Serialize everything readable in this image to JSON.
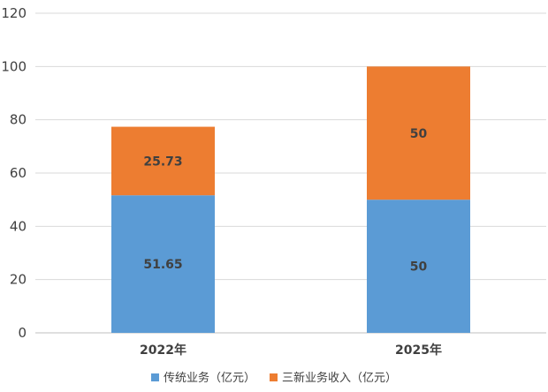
{
  "chart_data": {
    "type": "bar",
    "stacked": true,
    "categories": [
      "2022年",
      "2025年"
    ],
    "series": [
      {
        "name": "传统业务（亿元）",
        "values": [
          51.65,
          50
        ],
        "color": "#5B9BD5"
      },
      {
        "name": "三新业务收入（亿元）",
        "values": [
          25.73,
          50
        ],
        "color": "#ED7D31"
      }
    ],
    "data_labels": [
      [
        "51.65",
        "50"
      ],
      [
        "25.73",
        "50"
      ]
    ],
    "ylim": [
      0,
      120
    ],
    "yticks": [
      0,
      20,
      40,
      60,
      80,
      100,
      120
    ],
    "grid": true,
    "legend": "bottom",
    "title": "",
    "xlabel": "",
    "ylabel": ""
  }
}
